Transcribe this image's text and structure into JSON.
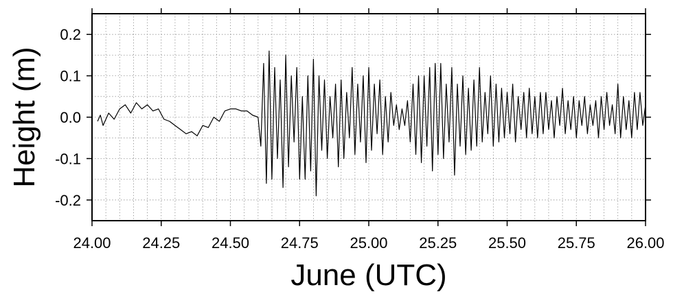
{
  "chart_data": {
    "type": "line",
    "title": "",
    "xlabel": "June (UTC)",
    "ylabel": "Height (m)",
    "xlim": [
      24.0,
      26.0
    ],
    "ylim": [
      -0.25,
      0.25
    ],
    "x_ticks": [
      24.0,
      24.25,
      24.5,
      24.75,
      25.0,
      25.25,
      25.5,
      25.75,
      26.0
    ],
    "x_tick_labels": [
      "24.00",
      "24.25",
      "24.50",
      "24.75",
      "25.00",
      "25.25",
      "25.50",
      "25.75",
      "26.00"
    ],
    "y_ticks": [
      0.2,
      0.1,
      0.0,
      -0.1,
      -0.2
    ],
    "y_tick_labels": [
      "0.2",
      "0.1",
      "0.0",
      "-0.1",
      "-0.2"
    ],
    "grid": true,
    "line_color": "#000000",
    "series": [
      {
        "x": [
          24.02,
          24.03,
          24.04,
          24.06,
          24.08,
          24.1,
          24.12,
          24.14,
          24.16,
          24.18,
          24.2,
          24.22,
          24.24,
          24.26,
          24.28,
          24.3,
          24.32,
          24.34,
          24.36,
          24.38,
          24.4,
          24.42,
          24.44,
          24.46,
          24.48,
          24.5,
          24.52,
          24.54,
          24.56,
          24.58,
          24.6,
          24.61,
          24.62,
          24.63,
          24.64,
          24.65,
          24.66,
          24.67,
          24.68,
          24.69,
          24.7,
          24.71,
          24.72,
          24.73,
          24.74,
          24.75,
          24.76,
          24.77,
          24.78,
          24.79,
          24.8,
          24.81,
          24.82,
          24.83,
          24.84,
          24.85,
          24.86,
          24.87,
          24.88,
          24.89,
          24.9,
          24.91,
          24.92,
          24.93,
          24.94,
          24.95,
          24.96,
          24.97,
          24.98,
          24.99,
          25.0,
          25.01,
          25.02,
          25.03,
          25.04,
          25.05,
          25.06,
          25.07,
          25.08,
          25.09,
          25.1,
          25.11,
          25.12,
          25.13,
          25.14,
          25.15,
          25.16,
          25.17,
          25.18,
          25.19,
          25.2,
          25.21,
          25.22,
          25.23,
          25.24,
          25.25,
          25.26,
          25.27,
          25.28,
          25.29,
          25.3,
          25.31,
          25.32,
          25.33,
          25.34,
          25.35,
          25.36,
          25.37,
          25.38,
          25.39,
          25.4,
          25.41,
          25.42,
          25.43,
          25.44,
          25.45,
          25.46,
          25.47,
          25.48,
          25.49,
          25.5,
          25.51,
          25.52,
          25.53,
          25.54,
          25.55,
          25.56,
          25.57,
          25.58,
          25.59,
          25.6,
          25.61,
          25.62,
          25.63,
          25.64,
          25.65,
          25.66,
          25.67,
          25.68,
          25.69,
          25.7,
          25.71,
          25.72,
          25.73,
          25.74,
          25.75,
          25.76,
          25.77,
          25.78,
          25.79,
          25.8,
          25.81,
          25.82,
          25.83,
          25.84,
          25.85,
          25.86,
          25.87,
          25.88,
          25.89,
          25.9,
          25.91,
          25.92,
          25.93,
          25.94,
          25.95,
          25.96,
          25.97,
          25.98,
          25.99,
          26.0
        ],
        "y": [
          -0.01,
          0.005,
          -0.02,
          0.01,
          -0.005,
          0.02,
          0.03,
          0.01,
          0.035,
          0.02,
          0.03,
          0.015,
          0.02,
          -0.005,
          -0.01,
          -0.02,
          -0.03,
          -0.04,
          -0.035,
          -0.045,
          -0.02,
          -0.025,
          0.0,
          -0.01,
          0.015,
          0.02,
          0.02,
          0.015,
          0.015,
          0.005,
          0.0,
          -0.07,
          0.13,
          -0.16,
          0.16,
          -0.15,
          0.12,
          -0.1,
          0.09,
          -0.17,
          0.15,
          -0.12,
          0.1,
          -0.06,
          0.12,
          -0.15,
          0.05,
          -0.15,
          0.1,
          -0.13,
          0.14,
          -0.19,
          0.1,
          -0.08,
          0.09,
          -0.1,
          0.05,
          -0.05,
          0.08,
          -0.12,
          0.09,
          -0.1,
          0.06,
          -0.05,
          0.12,
          -0.09,
          0.08,
          -0.06,
          0.1,
          -0.11,
          0.12,
          -0.08,
          0.08,
          -0.04,
          0.09,
          -0.09,
          0.05,
          -0.06,
          0.06,
          -0.02,
          0.03,
          -0.03,
          0.02,
          -0.02,
          0.04,
          -0.06,
          0.08,
          -0.09,
          0.1,
          -0.11,
          0.1,
          -0.07,
          0.12,
          -0.13,
          0.13,
          -0.09,
          0.13,
          -0.1,
          0.08,
          -0.06,
          0.12,
          -0.14,
          0.08,
          -0.07,
          0.1,
          -0.09,
          0.07,
          -0.08,
          0.09,
          -0.07,
          0.12,
          -0.06,
          0.06,
          -0.04,
          0.1,
          -0.07,
          0.08,
          -0.06,
          0.07,
          -0.05,
          0.06,
          -0.04,
          0.08,
          -0.06,
          0.05,
          -0.03,
          0.06,
          -0.05,
          0.07,
          -0.04,
          0.05,
          -0.05,
          0.06,
          -0.04,
          0.06,
          -0.03,
          0.04,
          -0.05,
          0.05,
          -0.02,
          0.07,
          -0.04,
          0.04,
          -0.03,
          0.05,
          -0.05,
          0.04,
          -0.02,
          0.05,
          -0.04,
          0.03,
          -0.02,
          0.04,
          -0.05,
          0.05,
          -0.03,
          0.06,
          -0.02,
          0.03,
          -0.04,
          0.08,
          -0.05,
          0.05,
          -0.03,
          0.04,
          -0.05,
          0.06,
          -0.03,
          0.06,
          -0.02,
          0.03
        ]
      }
    ]
  }
}
